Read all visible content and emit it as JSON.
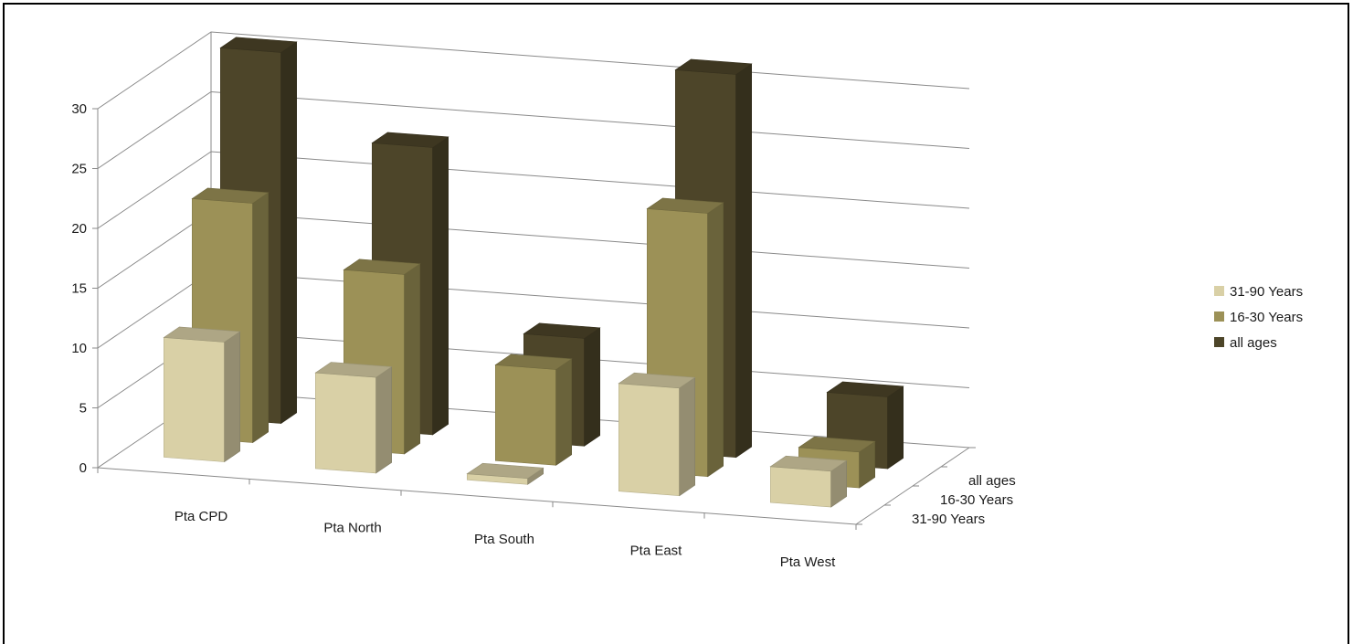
{
  "chart_data": {
    "type": "bar",
    "categories": [
      "Pta CPD",
      "Pta North",
      "Pta South",
      "Pta East",
      "Pta West"
    ],
    "series": [
      {
        "name": "31-90 Years",
        "values": [
          10,
          8,
          0.5,
          9,
          3
        ],
        "color": "#d9d0a6"
      },
      {
        "name": "16-30 Years",
        "values": [
          20,
          15,
          8,
          22,
          3
        ],
        "color": "#9c9157"
      },
      {
        "name": "all ages",
        "values": [
          31,
          24,
          9,
          32,
          6
        ],
        "color": "#4d4529"
      }
    ],
    "y_ticks": [
      "0",
      "5",
      "10",
      "15",
      "20",
      "25",
      "30"
    ],
    "ylim": [
      0,
      30
    ],
    "depth_labels": [
      "31-90 Years",
      "16-30 Years",
      "all ages"
    ],
    "legend_position": "right",
    "grid": true
  }
}
